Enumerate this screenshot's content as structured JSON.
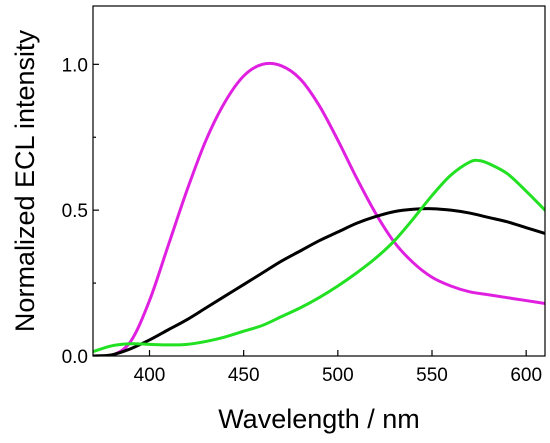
{
  "chart_data": {
    "type": "line",
    "title": "",
    "xlabel": "Wavelength / nm",
    "ylabel": "Normalized ECL intensity",
    "xlim": [
      370,
      610
    ],
    "ylim": [
      0,
      1.2
    ],
    "x_ticks": [
      400,
      450,
      500,
      550,
      600
    ],
    "x_tick_labels": [
      "400",
      "450",
      "500",
      "550",
      "600"
    ],
    "y_ticks": [
      0,
      0.5,
      1
    ],
    "y_tick_labels": [
      "0.0",
      "0.5",
      "1.0"
    ],
    "grid": false,
    "legend": "none",
    "series": [
      {
        "color": "#e020e0",
        "x": [
          370,
          380,
          390,
          400,
          410,
          420,
          430,
          440,
          450,
          460,
          470,
          480,
          490,
          500,
          510,
          520,
          530,
          540,
          550,
          560,
          570,
          580,
          590,
          600,
          610
        ],
        "y": [
          0.0,
          0.002,
          0.05,
          0.19,
          0.38,
          0.57,
          0.74,
          0.87,
          0.96,
          1.0,
          0.995,
          0.95,
          0.86,
          0.74,
          0.61,
          0.49,
          0.39,
          0.32,
          0.27,
          0.24,
          0.22,
          0.21,
          0.2,
          0.19,
          0.18
        ]
      },
      {
        "color": "#000000",
        "x": [
          370,
          380,
          390,
          400,
          410,
          420,
          430,
          440,
          450,
          460,
          470,
          480,
          490,
          500,
          510,
          520,
          530,
          540,
          550,
          560,
          570,
          580,
          590,
          600,
          610
        ],
        "y": [
          0.0,
          0.004,
          0.025,
          0.055,
          0.09,
          0.125,
          0.165,
          0.205,
          0.245,
          0.285,
          0.325,
          0.36,
          0.395,
          0.425,
          0.455,
          0.478,
          0.495,
          0.503,
          0.505,
          0.5,
          0.49,
          0.475,
          0.46,
          0.44,
          0.42
        ]
      },
      {
        "color": "#22e022",
        "x": [
          370,
          380,
          390,
          400,
          410,
          420,
          430,
          440,
          450,
          460,
          470,
          480,
          490,
          500,
          510,
          520,
          530,
          540,
          550,
          560,
          570,
          575,
          580,
          590,
          600,
          610
        ],
        "y": [
          0.015,
          0.035,
          0.042,
          0.04,
          0.038,
          0.04,
          0.05,
          0.065,
          0.085,
          0.105,
          0.135,
          0.165,
          0.2,
          0.24,
          0.285,
          0.335,
          0.395,
          0.47,
          0.55,
          0.62,
          0.665,
          0.67,
          0.66,
          0.625,
          0.565,
          0.5
        ]
      }
    ]
  }
}
